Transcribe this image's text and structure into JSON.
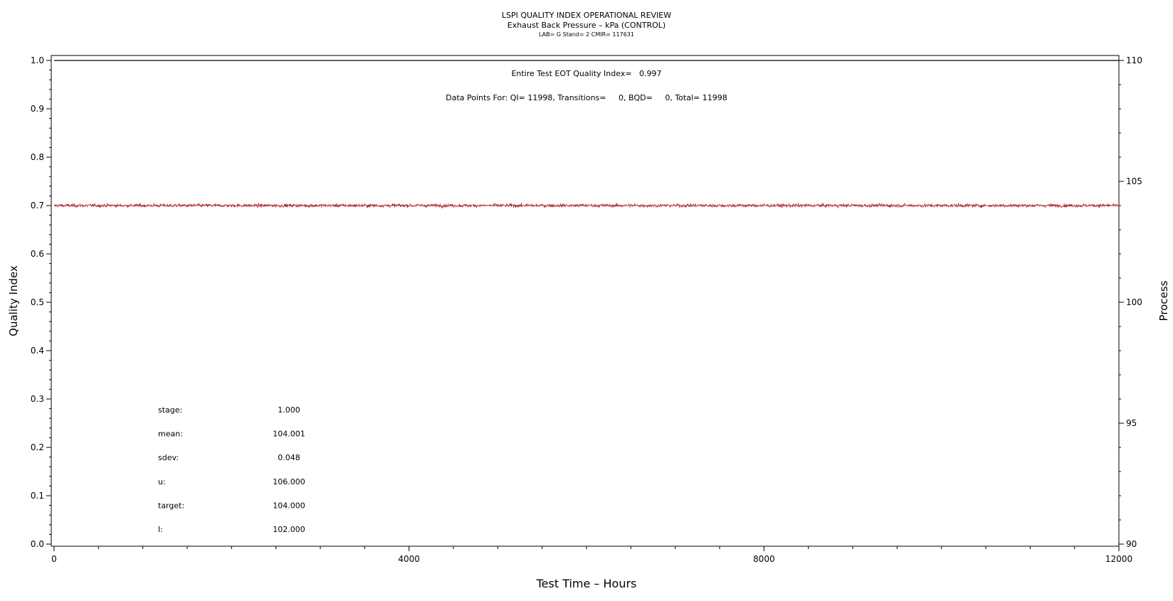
{
  "header": {
    "title": "LSPI QUALITY INDEX OPERATIONAL REVIEW",
    "subtitle": "Exhaust Back Pressure – kPa (CONTROL)",
    "lab_line": "LAB= G Stand= 2 CMIR= 117631"
  },
  "annotations": {
    "quality_index_line": "Entire Test EOT Quality Index=   0.997",
    "data_points_line": "Data Points For: QI= 11998, Transitions=     0, BQD=     0, Total= 11998"
  },
  "stats": [
    {
      "label": "stage:",
      "value": "1.000"
    },
    {
      "label": "mean:",
      "value": "104.001"
    },
    {
      "label": "sdev:",
      "value": "0.048"
    },
    {
      "label": "u:",
      "value": "106.000"
    },
    {
      "label": "target:",
      "value": "104.000"
    },
    {
      "label": "l:",
      "value": "102.000"
    }
  ],
  "chart_data": {
    "type": "line",
    "xlabel": "Test Time – Hours",
    "ylabel": "Quality Index",
    "y2label": "Process",
    "xlim": [
      0,
      12000
    ],
    "ylim": [
      0,
      1
    ],
    "y2lim": [
      90,
      110
    ],
    "xticks": [
      "0",
      "4000",
      "8000",
      "12000"
    ],
    "yticks": [
      "0.0",
      "0.1",
      "0.2",
      "0.3",
      "0.4",
      "0.5",
      "0.6",
      "0.7",
      "0.8",
      "0.9",
      "1.0"
    ],
    "y2ticks": [
      "90",
      "95",
      "100",
      "105",
      "110"
    ],
    "grid": false,
    "series": [
      {
        "axis": "left",
        "color": "#000000",
        "x": [
          0,
          12000
        ],
        "values": [
          1.0,
          1.0
        ]
      },
      {
        "axis": "right",
        "color": "#b0202a",
        "x_range": [
          0,
          12000
        ],
        "mean": 104.001,
        "sdev": 0.048,
        "points": 11998
      }
    ]
  }
}
